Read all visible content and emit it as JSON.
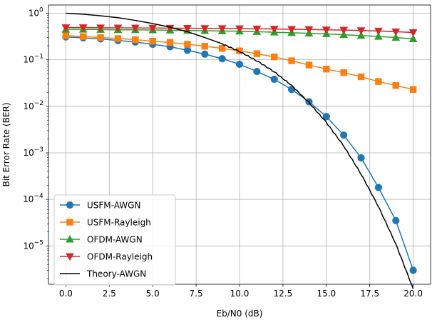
{
  "chart_data": {
    "type": "line",
    "title": "",
    "xlabel": "Eb/N0 (dB)",
    "ylabel": "Bit Error Rate (BER)",
    "xlim": [
      -1,
      21
    ],
    "ylim": [
      1.5e-06,
      1.5
    ],
    "yscale": "log",
    "grid": true,
    "legend_position": "lower-left",
    "x_ticks": [
      0,
      2.5,
      5,
      7.5,
      10,
      12.5,
      15,
      17.5,
      20
    ],
    "x_tick_labels": [
      "0.0",
      "2.5",
      "5.0",
      "7.5",
      "10.0",
      "12.5",
      "15.0",
      "17.5",
      "20.0"
    ],
    "y_ticks": [
      {
        "value": 1,
        "mant": "10",
        "exp": "0"
      },
      {
        "value": 0.1,
        "mant": "10",
        "exp": "−1"
      },
      {
        "value": 0.01,
        "mant": "10",
        "exp": "−2"
      },
      {
        "value": 0.001,
        "mant": "10",
        "exp": "−3"
      },
      {
        "value": 0.0001,
        "mant": "10",
        "exp": "−4"
      },
      {
        "value": 1e-05,
        "mant": "10",
        "exp": "−5"
      }
    ],
    "series": [
      {
        "name": "USFM-AWGN",
        "color": "#1f77b4",
        "marker": "circle",
        "x": [
          0,
          1,
          2,
          3,
          4,
          5,
          6,
          7,
          8,
          9,
          10,
          11,
          12,
          13,
          14,
          15,
          16,
          17,
          18,
          19,
          20
        ],
        "y": [
          0.31,
          0.295,
          0.28,
          0.26,
          0.24,
          0.215,
          0.19,
          0.16,
          0.132,
          0.105,
          0.08,
          0.056,
          0.038,
          0.023,
          0.0125,
          0.006,
          0.0024,
          0.00078,
          0.00018,
          3.5e-05,
          3e-06
        ]
      },
      {
        "name": "USFM-Rayleigh",
        "color": "#ff7f0e",
        "marker": "square",
        "x": [
          0,
          1,
          2,
          3,
          4,
          5,
          6,
          7,
          8,
          9,
          10,
          11,
          12,
          13,
          14,
          15,
          16,
          17,
          18,
          19,
          20
        ],
        "y": [
          0.33,
          0.315,
          0.3,
          0.285,
          0.27,
          0.25,
          0.235,
          0.215,
          0.195,
          0.175,
          0.155,
          0.135,
          0.115,
          0.095,
          0.077,
          0.063,
          0.053,
          0.043,
          0.034,
          0.028,
          0.023
        ]
      },
      {
        "name": "OFDM-AWGN",
        "color": "#2ca02c",
        "marker": "triangle-up",
        "x": [
          0,
          1,
          2,
          3,
          4,
          5,
          6,
          7,
          8,
          9,
          10,
          11,
          12,
          13,
          14,
          15,
          16,
          17,
          18,
          19,
          20
        ],
        "y": [
          0.45,
          0.45,
          0.445,
          0.44,
          0.44,
          0.435,
          0.43,
          0.425,
          0.42,
          0.415,
          0.41,
          0.4,
          0.39,
          0.38,
          0.37,
          0.36,
          0.345,
          0.33,
          0.315,
          0.3,
          0.28
        ]
      },
      {
        "name": "OFDM-Rayleigh",
        "color": "#d62728",
        "marker": "triangle-down",
        "x": [
          0,
          1,
          2,
          3,
          4,
          5,
          6,
          7,
          8,
          9,
          10,
          11,
          12,
          13,
          14,
          15,
          16,
          17,
          18,
          19,
          20
        ],
        "y": [
          0.49,
          0.49,
          0.487,
          0.485,
          0.482,
          0.48,
          0.477,
          0.475,
          0.472,
          0.47,
          0.465,
          0.462,
          0.458,
          0.452,
          0.447,
          0.44,
          0.433,
          0.425,
          0.415,
          0.4,
          0.385
        ]
      },
      {
        "name": "Theory-AWGN",
        "color": "#000000",
        "marker": "none",
        "x": [
          0,
          1,
          2,
          3,
          4,
          5,
          6,
          7,
          8,
          9,
          10,
          11,
          12,
          13,
          14,
          15,
          16,
          17,
          18,
          19,
          20
        ],
        "y": [
          1.0,
          0.95,
          0.88,
          0.8,
          0.7,
          0.6,
          0.5,
          0.4,
          0.3,
          0.22,
          0.15,
          0.095,
          0.055,
          0.028,
          0.012,
          0.0045,
          0.0014,
          0.00035,
          7e-05,
          1.1e-05,
          1.2e-06
        ]
      }
    ]
  }
}
